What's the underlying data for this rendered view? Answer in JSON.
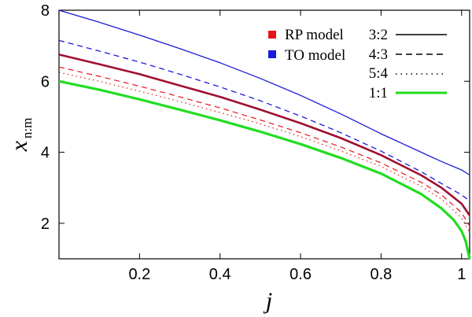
{
  "chart_data": {
    "type": "line",
    "xlabel": "j",
    "ylabel_main": "x",
    "ylabel_sub": "n:m",
    "xlim": [
      0,
      1.02
    ],
    "ylim": [
      1,
      8
    ],
    "x_ticks": [
      0.2,
      0.4,
      0.6,
      0.8,
      1
    ],
    "x_tick_labels": [
      "0.2",
      "0.4",
      "0.6",
      "0.8",
      "1"
    ],
    "y_ticks": [
      2,
      4,
      6,
      8
    ],
    "y_tick_labels": [
      "2",
      "4",
      "6",
      "8"
    ],
    "legend": {
      "models": [
        {
          "label": "RP model",
          "color": "#e8141c"
        },
        {
          "label": "TO model",
          "color": "#1a1adb"
        }
      ],
      "ratios": [
        {
          "label": "3:2",
          "dash": "solid"
        },
        {
          "label": "4:3",
          "dash": "dashed"
        },
        {
          "label": "5:4",
          "dash": "dotted"
        },
        {
          "label": "1:1",
          "dash": "solid-green"
        }
      ]
    },
    "series": [
      {
        "name": "TO model 3:2",
        "color": "#1a1adb",
        "dash": "solid",
        "width": 1.3,
        "x": [
          0,
          0.1,
          0.2,
          0.3,
          0.4,
          0.5,
          0.6,
          0.7,
          0.8,
          0.9,
          0.95,
          1.0,
          1.02
        ],
        "y": [
          8.0,
          7.66,
          7.3,
          6.92,
          6.52,
          6.08,
          5.6,
          5.08,
          4.52,
          4.0,
          3.74,
          3.5,
          3.36
        ]
      },
      {
        "name": "TO model 4:3",
        "color": "#1a1adb",
        "dash": "dashed",
        "width": 1.3,
        "x": [
          0,
          0.1,
          0.2,
          0.3,
          0.4,
          0.5,
          0.6,
          0.7,
          0.8,
          0.9,
          0.95,
          1.0,
          1.02
        ],
        "y": [
          7.15,
          6.85,
          6.54,
          6.2,
          5.84,
          5.45,
          5.02,
          4.55,
          4.03,
          3.45,
          3.12,
          2.8,
          2.63
        ]
      },
      {
        "name": "RP model 3:2",
        "color": "#a01030",
        "dash": "solid",
        "width": 2.6,
        "x": [
          0,
          0.1,
          0.2,
          0.3,
          0.4,
          0.5,
          0.6,
          0.7,
          0.8,
          0.9,
          0.95,
          1.0,
          1.02
        ],
        "y": [
          6.75,
          6.48,
          6.2,
          5.88,
          5.56,
          5.2,
          4.82,
          4.4,
          3.92,
          3.35,
          3.0,
          2.55,
          2.22
        ]
      },
      {
        "name": "RP model 4:3",
        "color": "#e8141c",
        "dash": "dashed",
        "width": 1.2,
        "x": [
          0,
          0.1,
          0.2,
          0.3,
          0.4,
          0.5,
          0.6,
          0.7,
          0.8,
          0.9,
          0.95,
          1.0,
          1.02
        ],
        "y": [
          6.4,
          6.14,
          5.86,
          5.56,
          5.25,
          4.91,
          4.55,
          4.15,
          3.7,
          3.15,
          2.8,
          2.3,
          1.92
        ]
      },
      {
        "name": "RP model 5:4",
        "color": "#e8141c",
        "dash": "dotted",
        "width": 1.2,
        "x": [
          0,
          0.1,
          0.2,
          0.3,
          0.4,
          0.5,
          0.6,
          0.7,
          0.8,
          0.9,
          0.95,
          1.0,
          1.02
        ],
        "y": [
          6.25,
          6.0,
          5.72,
          5.43,
          5.12,
          4.8,
          4.44,
          4.04,
          3.6,
          3.04,
          2.68,
          2.15,
          1.75
        ]
      },
      {
        "name": "1:1",
        "color": "#22dd22",
        "dash": "solid",
        "width": 3.2,
        "x": [
          0,
          0.1,
          0.2,
          0.3,
          0.4,
          0.5,
          0.6,
          0.7,
          0.8,
          0.9,
          0.95,
          0.98,
          1.0,
          1.01,
          1.02
        ],
        "y": [
          6.0,
          5.76,
          5.49,
          5.2,
          4.9,
          4.58,
          4.23,
          3.84,
          3.4,
          2.82,
          2.42,
          2.1,
          1.78,
          1.5,
          1.0
        ]
      }
    ]
  }
}
